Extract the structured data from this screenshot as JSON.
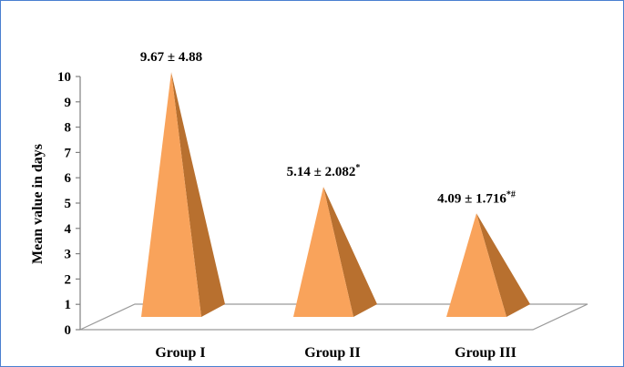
{
  "chart_data": {
    "type": "bar",
    "style": "3d-pyramid",
    "categories": [
      "Group I",
      "Group II",
      "Group III"
    ],
    "values": [
      9.67,
      5.14,
      4.09
    ],
    "value_labels": [
      {
        "text": "9.67 ± 4.88",
        "sup": ""
      },
      {
        "text": "5.14 ± 2.082",
        "sup": "*"
      },
      {
        "text": "4.09 ± 1.716",
        "sup": "*#"
      }
    ],
    "title": "",
    "xlabel": "",
    "ylabel": "Mean value in days",
    "ylim": [
      0,
      10
    ],
    "yticks": [
      0,
      1,
      2,
      3,
      4,
      5,
      6,
      7,
      8,
      9,
      10
    ],
    "grid": false,
    "legend": "none",
    "colors": {
      "front_face": "#F9A35B",
      "side_face": "#B8702F",
      "floor_fill": "#ffffff",
      "floor_edge": "#9a9a9a",
      "border": "#4a7fd0"
    }
  }
}
